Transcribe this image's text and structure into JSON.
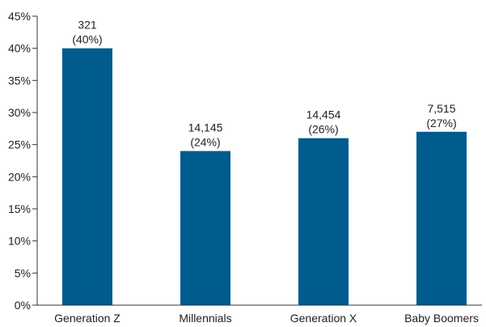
{
  "chart_data": {
    "type": "bar",
    "categories": [
      "Generation Z",
      "Millennials",
      "Generation X",
      "Baby Boomers"
    ],
    "values": [
      40,
      24,
      26,
      27
    ],
    "counts": [
      "321",
      "14,145",
      "14,454",
      "7,515"
    ],
    "percent_labels": [
      "(40%)",
      "(24%)",
      "(26%)",
      "(27%)"
    ],
    "ylim": [
      0,
      45
    ],
    "y_ticks": [
      0,
      5,
      10,
      15,
      20,
      25,
      30,
      35,
      40,
      45
    ],
    "y_tick_labels": [
      "0%",
      "5%",
      "10%",
      "15%",
      "20%",
      "25%",
      "30%",
      "35%",
      "40%",
      "45%"
    ],
    "bar_color": "#005b8f",
    "grid": false,
    "title": "",
    "xlabel": "",
    "ylabel": ""
  }
}
